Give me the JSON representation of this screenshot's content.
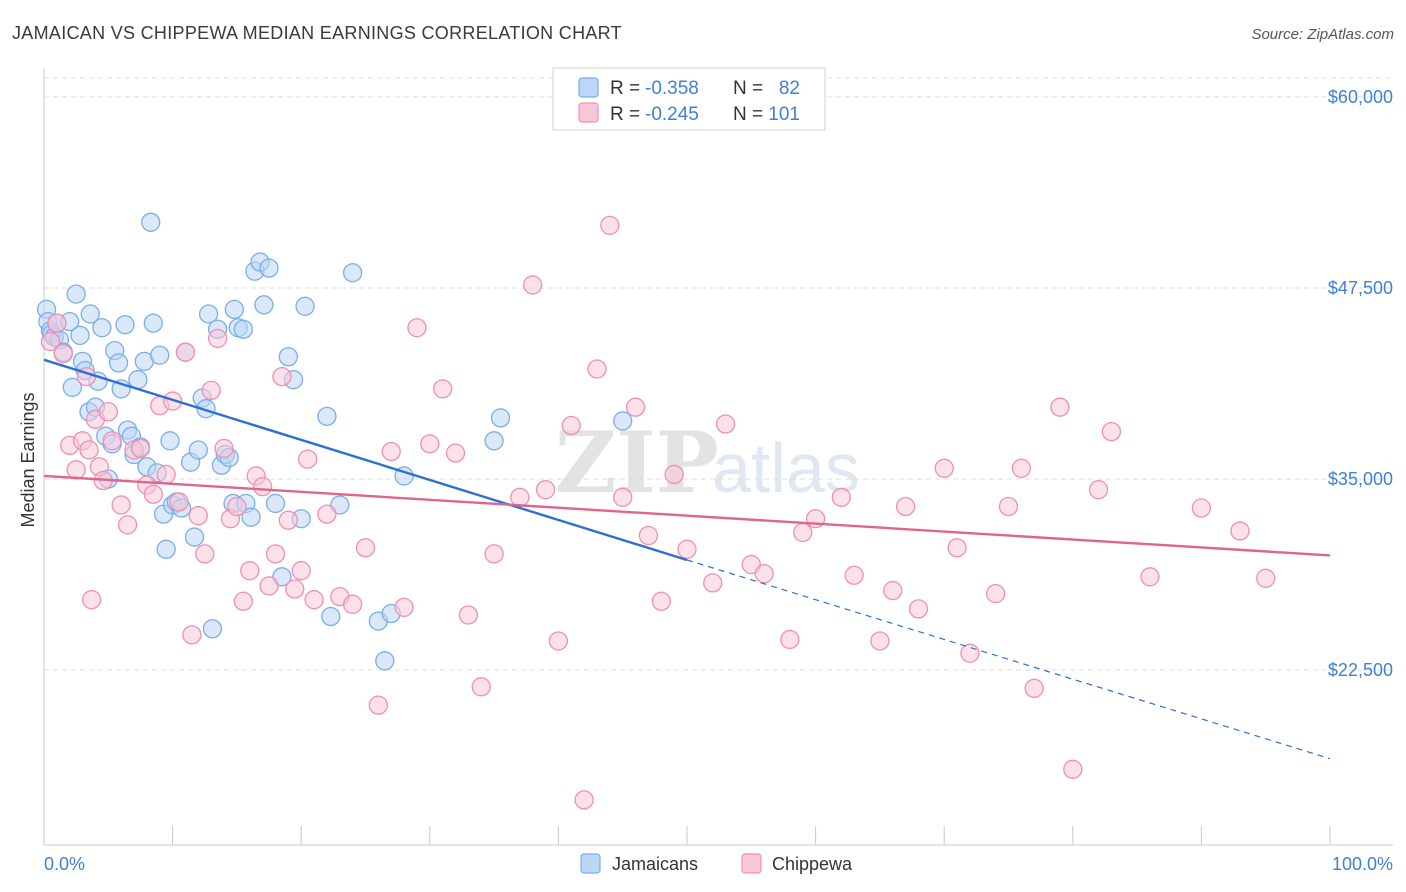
{
  "chart_data": {
    "type": "scatter",
    "title": "JAMAICAN VS CHIPPEWA MEDIAN EARNINGS CORRELATION CHART",
    "source": "Source: ZipAtlas.com",
    "ylabel": "Median Earnings",
    "xlabel": "",
    "xlim": [
      0,
      100
    ],
    "ylim": [
      10000,
      62500
    ],
    "y_ticks": [
      {
        "value": 60000,
        "label": "$60,000"
      },
      {
        "value": 47500,
        "label": "$47,500"
      },
      {
        "value": 35000,
        "label": "$35,000"
      },
      {
        "value": 22500,
        "label": "$22,500"
      }
    ],
    "x_tick_labels": {
      "left": "0.0%",
      "right": "100.0%"
    },
    "grid": true,
    "legend_position": "top-center",
    "legend": [
      {
        "r_label": "R =",
        "r_value": "-0.358",
        "n_label": "N =",
        "n_value": "82"
      },
      {
        "r_label": "R =",
        "r_value": "-0.245",
        "n_label": "N =",
        "n_value": "101"
      }
    ],
    "watermark": {
      "zip": "ZIP",
      "atlas": "atlas"
    },
    "series": [
      {
        "name": "Jamaicans",
        "color": "#7aaee8",
        "fill": "#bcd6f5",
        "line_color": "#2d6fd3",
        "trend": {
          "x0": 0,
          "y0": 42800,
          "x1": 50,
          "y1": 29700,
          "x_end": 100,
          "y_end": 16700
        },
        "points": [
          [
            0.2,
            46100
          ],
          [
            0.3,
            45300
          ],
          [
            0.5,
            44700
          ],
          [
            0.6,
            44500
          ],
          [
            0.8,
            44300
          ],
          [
            1.0,
            45200
          ],
          [
            1.2,
            44100
          ],
          [
            1.5,
            43300
          ],
          [
            2.0,
            45300
          ],
          [
            2.2,
            41000
          ],
          [
            2.5,
            47100
          ],
          [
            2.8,
            44400
          ],
          [
            3.0,
            42700
          ],
          [
            3.2,
            42100
          ],
          [
            3.5,
            39400
          ],
          [
            3.6,
            45800
          ],
          [
            4.0,
            39700
          ],
          [
            4.2,
            41400
          ],
          [
            4.5,
            44900
          ],
          [
            4.8,
            37800
          ],
          [
            5.0,
            35000
          ],
          [
            5.3,
            37300
          ],
          [
            5.5,
            43400
          ],
          [
            5.8,
            42600
          ],
          [
            6.0,
            40900
          ],
          [
            6.3,
            45100
          ],
          [
            6.5,
            38200
          ],
          [
            6.8,
            37800
          ],
          [
            7.0,
            36600
          ],
          [
            7.3,
            41500
          ],
          [
            7.5,
            37100
          ],
          [
            7.8,
            42700
          ],
          [
            8.0,
            35800
          ],
          [
            8.3,
            51800
          ],
          [
            8.5,
            45200
          ],
          [
            8.8,
            35400
          ],
          [
            9.0,
            43100
          ],
          [
            9.3,
            32700
          ],
          [
            9.5,
            30400
          ],
          [
            9.8,
            37500
          ],
          [
            10.0,
            33300
          ],
          [
            10.3,
            33500
          ],
          [
            10.7,
            33100
          ],
          [
            11.0,
            43300
          ],
          [
            11.4,
            36100
          ],
          [
            11.7,
            31200
          ],
          [
            12.0,
            36900
          ],
          [
            12.3,
            40300
          ],
          [
            12.6,
            39600
          ],
          [
            12.8,
            45800
          ],
          [
            13.1,
            25200
          ],
          [
            13.5,
            44800
          ],
          [
            13.8,
            35900
          ],
          [
            14.1,
            36600
          ],
          [
            14.4,
            36400
          ],
          [
            14.7,
            33400
          ],
          [
            14.8,
            46100
          ],
          [
            15.1,
            44900
          ],
          [
            15.5,
            44800
          ],
          [
            15.7,
            33400
          ],
          [
            16.1,
            32500
          ],
          [
            16.4,
            48600
          ],
          [
            16.8,
            49200
          ],
          [
            17.1,
            46400
          ],
          [
            17.5,
            48800
          ],
          [
            18.0,
            33400
          ],
          [
            18.5,
            28600
          ],
          [
            19.0,
            43000
          ],
          [
            19.4,
            41500
          ],
          [
            20.0,
            32400
          ],
          [
            20.3,
            46300
          ],
          [
            22.0,
            39100
          ],
          [
            22.3,
            26000
          ],
          [
            23.0,
            33300
          ],
          [
            24.0,
            48500
          ],
          [
            26.0,
            25700
          ],
          [
            26.5,
            23100
          ],
          [
            27.0,
            26200
          ],
          [
            28.0,
            35200
          ],
          [
            35.0,
            37500
          ],
          [
            35.5,
            39000
          ],
          [
            45.0,
            38800
          ]
        ]
      },
      {
        "name": "Chippewa",
        "color": "#f08fb0",
        "fill": "#f9c8d8",
        "line_color": "#e0648f",
        "trend": {
          "x0": 0,
          "y0": 35200,
          "x1": 100,
          "y1": 30000
        },
        "points": [
          [
            0.5,
            44000
          ],
          [
            1.0,
            45200
          ],
          [
            1.5,
            43200
          ],
          [
            2.0,
            37200
          ],
          [
            2.5,
            35600
          ],
          [
            3.0,
            37500
          ],
          [
            3.3,
            41700
          ],
          [
            3.5,
            36900
          ],
          [
            3.7,
            27100
          ],
          [
            4.0,
            38900
          ],
          [
            4.3,
            35800
          ],
          [
            4.6,
            34900
          ],
          [
            5.0,
            39400
          ],
          [
            5.3,
            37500
          ],
          [
            6.0,
            33300
          ],
          [
            6.5,
            32000
          ],
          [
            7.0,
            36900
          ],
          [
            7.5,
            37000
          ],
          [
            8.0,
            34600
          ],
          [
            8.5,
            34000
          ],
          [
            9.0,
            39800
          ],
          [
            9.5,
            35300
          ],
          [
            10.0,
            40100
          ],
          [
            10.5,
            33500
          ],
          [
            11.0,
            43300
          ],
          [
            11.5,
            24800
          ],
          [
            12.0,
            32600
          ],
          [
            12.5,
            30100
          ],
          [
            13.0,
            40800
          ],
          [
            13.5,
            44200
          ],
          [
            14.0,
            37000
          ],
          [
            14.5,
            32400
          ],
          [
            15.0,
            33200
          ],
          [
            15.5,
            27000
          ],
          [
            16.0,
            29000
          ],
          [
            16.5,
            35200
          ],
          [
            17.0,
            34500
          ],
          [
            17.5,
            28000
          ],
          [
            18.0,
            30100
          ],
          [
            18.5,
            41700
          ],
          [
            19.0,
            32300
          ],
          [
            19.5,
            27800
          ],
          [
            20.0,
            29000
          ],
          [
            20.5,
            36300
          ],
          [
            21.0,
            27100
          ],
          [
            22.0,
            32700
          ],
          [
            23.0,
            27300
          ],
          [
            24.0,
            26800
          ],
          [
            25.0,
            30500
          ],
          [
            26.0,
            20200
          ],
          [
            27.0,
            36800
          ],
          [
            28.0,
            26600
          ],
          [
            29.0,
            44900
          ],
          [
            30.0,
            37300
          ],
          [
            31.0,
            40900
          ],
          [
            32.0,
            36700
          ],
          [
            33.0,
            26100
          ],
          [
            34.0,
            21400
          ],
          [
            35.0,
            30100
          ],
          [
            37.0,
            33800
          ],
          [
            38.0,
            47700
          ],
          [
            39.0,
            34300
          ],
          [
            40.0,
            24400
          ],
          [
            41.0,
            38500
          ],
          [
            42.0,
            14000
          ],
          [
            43.0,
            42200
          ],
          [
            44.0,
            51600
          ],
          [
            45.0,
            33800
          ],
          [
            46.0,
            39700
          ],
          [
            47.0,
            31300
          ],
          [
            48.0,
            27000
          ],
          [
            49.0,
            35300
          ],
          [
            50.0,
            30400
          ],
          [
            52.0,
            28200
          ],
          [
            53.0,
            38600
          ],
          [
            55.0,
            29400
          ],
          [
            56.0,
            28800
          ],
          [
            58.0,
            24500
          ],
          [
            59.0,
            31500
          ],
          [
            60.0,
            32400
          ],
          [
            62.0,
            33800
          ],
          [
            63.0,
            28700
          ],
          [
            65.0,
            24400
          ],
          [
            66.0,
            27700
          ],
          [
            67.0,
            33200
          ],
          [
            68.0,
            26500
          ],
          [
            70.0,
            35700
          ],
          [
            71.0,
            30500
          ],
          [
            72.0,
            23600
          ],
          [
            74.0,
            27500
          ],
          [
            75.0,
            33200
          ],
          [
            76.0,
            35700
          ],
          [
            77.0,
            21300
          ],
          [
            79.0,
            39700
          ],
          [
            80.0,
            16000
          ],
          [
            82.0,
            34300
          ],
          [
            83.0,
            38100
          ],
          [
            86.0,
            28600
          ],
          [
            90.0,
            33100
          ],
          [
            93.0,
            31600
          ],
          [
            95.0,
            28500
          ]
        ]
      }
    ]
  }
}
